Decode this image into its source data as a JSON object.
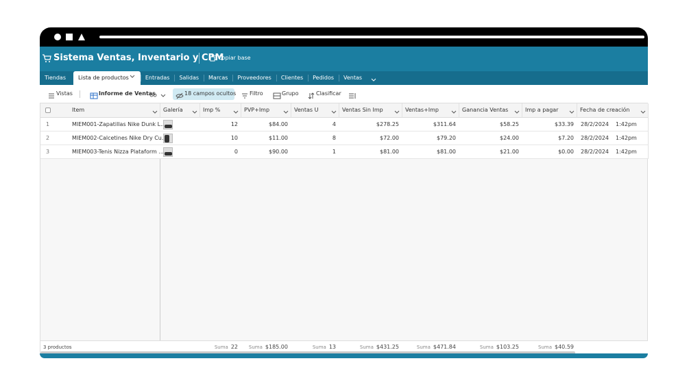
{
  "header": {
    "title": "Sistema Ventas, Inventario y CRM",
    "copy_button": "Copiar base"
  },
  "tabs": [
    "Tiendas",
    "Lista de productos",
    "Entradas",
    "Salidas",
    "Marcas",
    "Proveedores",
    "Clientes",
    "Pedidos",
    "Ventas"
  ],
  "toolbar": {
    "views": "Vistas",
    "view_name": "Informe de Ventas",
    "hidden_fields": "18 campos ocultos",
    "filter": "Filtro",
    "group": "Grupo",
    "sort": "Clasificar"
  },
  "table": {
    "columns": [
      "Item",
      "Galería",
      "Imp %",
      "PVP+Imp",
      "Ventas U",
      "Ventas Sin Imp",
      "Ventas+Imp",
      "Ganancia Ventas",
      "Imp a pagar",
      "Fecha de creación"
    ],
    "rows": [
      [
        "1",
        "MIEM001-Zapatillas Nike Dunk L...",
        "12",
        "$84.00",
        "4",
        "$278.25",
        "$311.64",
        "$58.25",
        "$33.39",
        "28/2/2024",
        "1:42pm"
      ],
      [
        "2",
        "MIEM002-Calcetines Nike Dry Cu...",
        "10",
        "$11.00",
        "8",
        "$72.00",
        "$79.20",
        "$24.00",
        "$7.20",
        "28/2/2024",
        "1:42pm"
      ],
      [
        "3",
        "MIEM003-Tenis Nizza Plataform ...",
        "0",
        "$90.00",
        "1",
        "$81.00",
        "$81.00",
        "$21.00",
        "$0.00",
        "28/2/2024",
        "1:42pm"
      ]
    ],
    "record_count": "3 productos",
    "sums": [
      {
        "label": "Suma",
        "value": "22"
      },
      {
        "label": "Suma",
        "value": "$185.00"
      },
      {
        "label": "Suma",
        "value": "13"
      },
      {
        "label": "Suma",
        "value": "$431.25"
      },
      {
        "label": "Suma",
        "value": "$471.84"
      },
      {
        "label": "Suma",
        "value": "$103.25"
      },
      {
        "label": "Suma",
        "value": "$40.59"
      }
    ]
  }
}
